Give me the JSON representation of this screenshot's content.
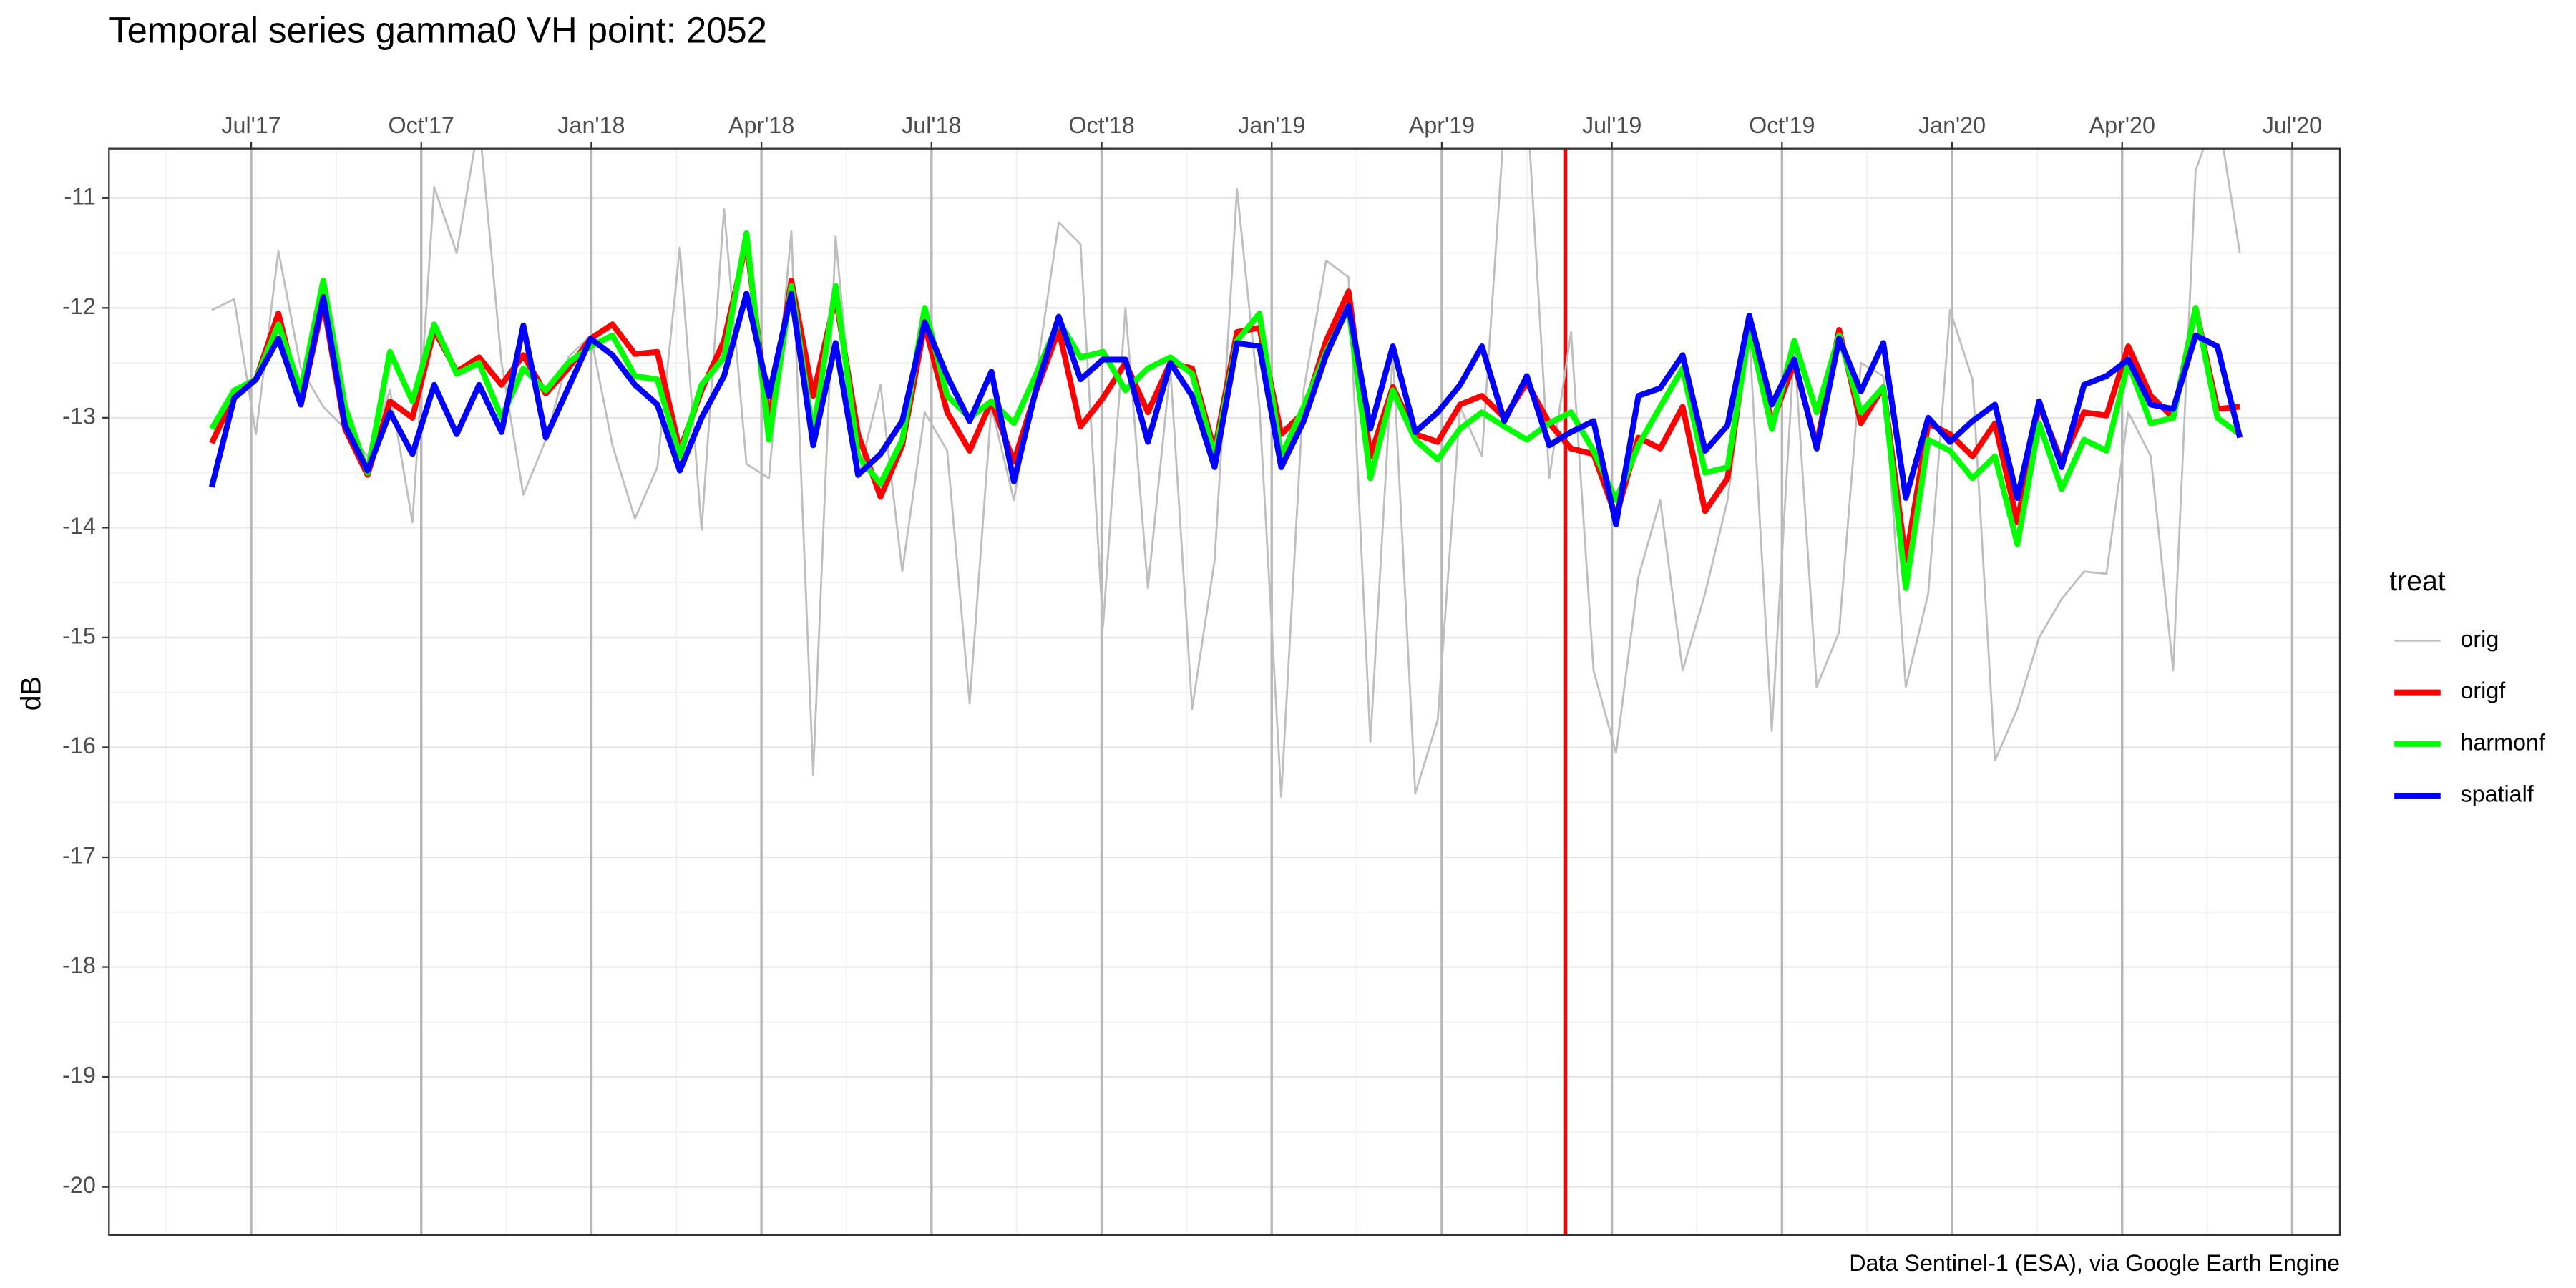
{
  "chart_data": {
    "type": "line",
    "title": "Temporal series gamma0 VH point: 2052",
    "ylabel": "dB",
    "caption": "Data Sentinel-1 (ESA), via Google Earth Engine",
    "legend_title": "treat",
    "legend": "right",
    "grid": true,
    "x": [
      2017.442,
      2017.475,
      2017.507,
      2017.54,
      2017.573,
      2017.606,
      2017.638,
      2017.671,
      2017.704,
      2017.737,
      2017.769,
      2017.802,
      2017.835,
      2017.868,
      2017.9,
      2017.933,
      2017.966,
      2017.999,
      2018.031,
      2018.064,
      2018.097,
      2018.13,
      2018.162,
      2018.195,
      2018.228,
      2018.261,
      2018.294,
      2018.326,
      2018.359,
      2018.392,
      2018.425,
      2018.457,
      2018.49,
      2018.523,
      2018.556,
      2018.588,
      2018.621,
      2018.654,
      2018.687,
      2018.719,
      2018.752,
      2018.785,
      2018.818,
      2018.851,
      2018.883,
      2018.916,
      2018.949,
      2018.982,
      2019.014,
      2019.047,
      2019.08,
      2019.113,
      2019.145,
      2019.178,
      2019.211,
      2019.244,
      2019.277,
      2019.309,
      2019.342,
      2019.375,
      2019.408,
      2019.44,
      2019.473,
      2019.506,
      2019.539,
      2019.571,
      2019.604,
      2019.637,
      2019.67,
      2019.702,
      2019.735,
      2019.768,
      2019.801,
      2019.834,
      2019.866,
      2019.899,
      2019.932,
      2019.965,
      2019.997,
      2020.03,
      2020.063,
      2020.096,
      2020.128,
      2020.161,
      2020.194,
      2020.227,
      2020.259,
      2020.292,
      2020.325,
      2020.358,
      2020.39,
      2020.423
    ],
    "xlim": [
      2017.291,
      2020.57
    ],
    "xticks": [
      {
        "value": 2017.5,
        "label": "Jul'17"
      },
      {
        "value": 2017.75,
        "label": "Oct'17"
      },
      {
        "value": 2018.0,
        "label": "Jan'18"
      },
      {
        "value": 2018.25,
        "label": "Apr'18"
      },
      {
        "value": 2018.5,
        "label": "Jul'18"
      },
      {
        "value": 2018.75,
        "label": "Oct'18"
      },
      {
        "value": 2019.0,
        "label": "Jan'19"
      },
      {
        "value": 2019.25,
        "label": "Apr'19"
      },
      {
        "value": 2019.5,
        "label": "Jul'19"
      },
      {
        "value": 2019.75,
        "label": "Oct'19"
      },
      {
        "value": 2020.0,
        "label": "Jan'20"
      },
      {
        "value": 2020.25,
        "label": "Apr'20"
      },
      {
        "value": 2020.5,
        "label": "Jul'20"
      }
    ],
    "ylim": [
      -20.44,
      -10.55
    ],
    "yticks": [
      -20,
      -19,
      -18,
      -17,
      -16,
      -15,
      -14,
      -13,
      -12,
      -11
    ],
    "vline": {
      "x": 2019.432,
      "color": "#ff0000"
    },
    "series": [
      {
        "name": "orig",
        "color": "#bebebe",
        "width": 1.2,
        "values": [
          -12.02,
          -11.92,
          -13.15,
          -11.48,
          -12.55,
          -12.9,
          -13.1,
          -13.35,
          -12.75,
          -13.95,
          -10.9,
          -11.5,
          -10.3,
          -12.5,
          -13.7,
          -13.2,
          -12.45,
          -12.25,
          -13.25,
          -13.92,
          -13.45,
          -11.45,
          -14.02,
          -11.1,
          -13.42,
          -13.55,
          -11.3,
          -16.25,
          -11.35,
          -13.55,
          -12.7,
          -14.4,
          -12.95,
          -13.3,
          -15.6,
          -12.9,
          -13.75,
          -12.6,
          -11.22,
          -11.42,
          -14.9,
          -12.0,
          -14.55,
          -12.55,
          -15.65,
          -14.3,
          -10.92,
          -12.9,
          -16.45,
          -12.75,
          -11.57,
          -11.72,
          -15.95,
          -12.4,
          -16.42,
          -15.75,
          -12.9,
          -13.35,
          -10.3,
          -10.1,
          -13.55,
          -12.22,
          -15.3,
          -16.05,
          -14.45,
          -13.75,
          -15.3,
          -14.6,
          -13.75,
          -12.25,
          -15.85,
          -12.35,
          -15.45,
          -14.95,
          -12.5,
          -12.62,
          -15.45,
          -14.6,
          -12.02,
          -12.65,
          -16.12,
          -15.65,
          -15.0,
          -14.65,
          -14.4,
          -14.42,
          -12.95,
          -13.35,
          -15.3,
          -10.75,
          -10.2,
          -11.5
        ]
      },
      {
        "name": "origf",
        "color": "#ff0000",
        "width": 3.5,
        "values": [
          -13.23,
          -12.8,
          -12.65,
          -12.05,
          -12.88,
          -11.95,
          -13.1,
          -13.52,
          -12.85,
          -13.0,
          -12.2,
          -12.58,
          -12.45,
          -12.7,
          -12.43,
          -12.78,
          -12.55,
          -12.28,
          -12.15,
          -12.42,
          -12.4,
          -13.3,
          -12.75,
          -12.3,
          -11.4,
          -13.05,
          -11.75,
          -12.8,
          -11.9,
          -13.15,
          -13.72,
          -13.25,
          -12.15,
          -12.95,
          -13.3,
          -12.85,
          -13.4,
          -12.75,
          -12.2,
          -13.08,
          -12.82,
          -12.5,
          -12.95,
          -12.5,
          -12.55,
          -13.3,
          -12.22,
          -12.18,
          -13.15,
          -12.95,
          -12.3,
          -11.85,
          -13.35,
          -12.72,
          -13.15,
          -13.22,
          -12.88,
          -12.8,
          -13.0,
          -12.68,
          -13.05,
          -13.28,
          -13.33,
          -13.9,
          -13.18,
          -13.28,
          -12.9,
          -13.85,
          -13.55,
          -12.12,
          -13.05,
          -12.5,
          -13.25,
          -12.2,
          -13.05,
          -12.72,
          -14.3,
          -13.05,
          -13.15,
          -13.35,
          -13.05,
          -13.95,
          -12.88,
          -13.4,
          -12.95,
          -12.98,
          -12.35,
          -12.8,
          -13.0,
          -12.0,
          -12.92,
          -12.9
        ]
      },
      {
        "name": "harmonf",
        "color": "#00ff00",
        "width": 3.5,
        "values": [
          -13.1,
          -12.75,
          -12.65,
          -12.15,
          -12.75,
          -11.75,
          -12.9,
          -13.5,
          -12.4,
          -12.85,
          -12.15,
          -12.6,
          -12.5,
          -13.0,
          -12.55,
          -12.75,
          -12.5,
          -12.35,
          -12.25,
          -12.62,
          -12.65,
          -13.35,
          -12.7,
          -12.45,
          -11.32,
          -13.2,
          -11.8,
          -13.15,
          -11.8,
          -13.35,
          -13.6,
          -13.2,
          -12.0,
          -12.8,
          -13.0,
          -12.85,
          -13.05,
          -12.6,
          -12.12,
          -12.45,
          -12.4,
          -12.75,
          -12.55,
          -12.45,
          -12.6,
          -13.35,
          -12.3,
          -12.05,
          -13.35,
          -12.9,
          -12.4,
          -12.0,
          -13.55,
          -12.75,
          -13.2,
          -13.38,
          -13.1,
          -12.95,
          -13.08,
          -13.2,
          -13.05,
          -12.95,
          -13.3,
          -13.75,
          -13.25,
          -12.9,
          -12.55,
          -13.5,
          -13.45,
          -12.2,
          -13.1,
          -12.3,
          -12.95,
          -12.25,
          -12.95,
          -12.72,
          -14.55,
          -13.2,
          -13.3,
          -13.55,
          -13.35,
          -14.15,
          -13.05,
          -13.65,
          -13.2,
          -13.3,
          -12.5,
          -13.05,
          -13.0,
          -12.0,
          -13.0,
          -13.15
        ]
      },
      {
        "name": "spatialf",
        "color": "#0000ff",
        "width": 3.5,
        "values": [
          -13.63,
          -12.82,
          -12.65,
          -12.28,
          -12.88,
          -11.9,
          -13.07,
          -13.48,
          -12.95,
          -13.33,
          -12.7,
          -13.15,
          -12.7,
          -13.13,
          -12.16,
          -13.18,
          -12.73,
          -12.28,
          -12.43,
          -12.7,
          -12.88,
          -13.48,
          -13.0,
          -12.62,
          -11.87,
          -12.8,
          -11.87,
          -13.25,
          -12.32,
          -13.52,
          -13.33,
          -13.03,
          -12.13,
          -12.62,
          -13.03,
          -12.58,
          -13.58,
          -12.73,
          -12.08,
          -12.65,
          -12.47,
          -12.47,
          -13.22,
          -12.5,
          -12.8,
          -13.45,
          -12.32,
          -12.35,
          -13.45,
          -13.03,
          -12.43,
          -11.98,
          -13.1,
          -12.35,
          -13.13,
          -12.95,
          -12.7,
          -12.35,
          -13.03,
          -12.62,
          -13.25,
          -13.13,
          -13.03,
          -13.97,
          -12.8,
          -12.73,
          -12.43,
          -13.3,
          -13.07,
          -12.07,
          -12.88,
          -12.47,
          -13.28,
          -12.28,
          -12.76,
          -12.32,
          -13.73,
          -13.0,
          -13.22,
          -13.03,
          -12.88,
          -13.73,
          -12.85,
          -13.45,
          -12.7,
          -12.62,
          -12.47,
          -12.88,
          -12.92,
          -12.25,
          -12.35,
          -13.18
        ]
      }
    ]
  }
}
